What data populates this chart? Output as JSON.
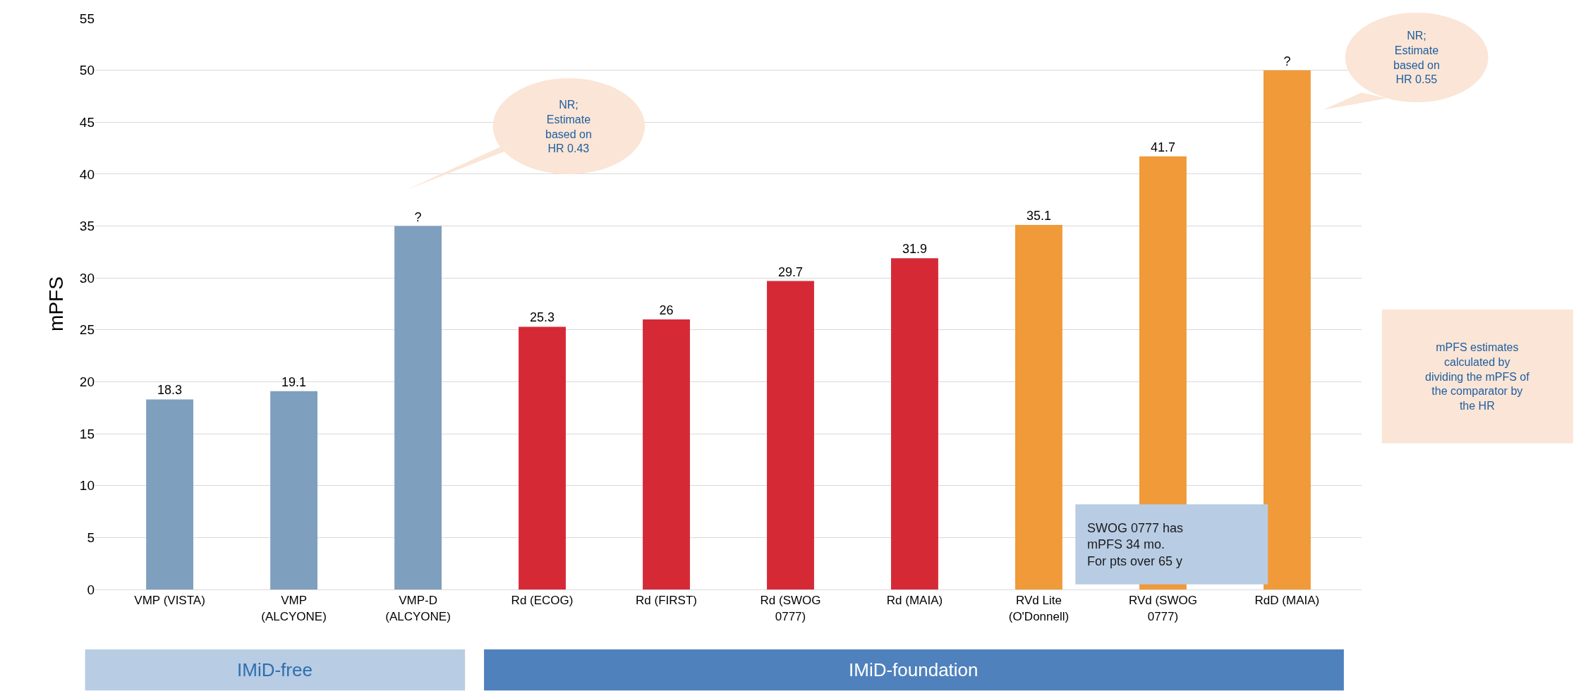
{
  "chart_data": {
    "type": "bar",
    "ylabel": "mPFS",
    "categories": [
      "VMP (VISTA)",
      "VMP\n(ALCYONE)",
      "VMP-D\n(ALCYONE)",
      "Rd (ECOG)",
      "Rd (FIRST)",
      "Rd (SWOG\n0777)",
      "Rd (MAIA)",
      "RVd Lite\n(O'Donnell)",
      "RVd (SWOG\n0777)",
      "RdD (MAIA)"
    ],
    "values": [
      18.3,
      19.1,
      35,
      25.3,
      26,
      29.7,
      31.9,
      35.1,
      41.7,
      50
    ],
    "value_labels": [
      "18.3",
      "19.1",
      "?",
      "25.3",
      "26",
      "29.7",
      "31.9",
      "35.1",
      "41.7",
      "?"
    ],
    "colors": [
      "#7f9fbf",
      "#7f9fbf",
      "#7f9fbf",
      "#d62936",
      "#d62936",
      "#d62936",
      "#d62936",
      "#f09a3a",
      "#f09a3a",
      "#f09a3a"
    ],
    "ylim": [
      0,
      55
    ],
    "yticks": [
      0,
      5,
      10,
      15,
      20,
      25,
      30,
      35,
      40,
      45,
      50,
      55
    ],
    "grid": "y",
    "annotations": [
      "NR;\nEstimate\nbased on\nHR 0.43",
      "NR;\nEstimate\nbased on\nHR 0.55",
      "mPFS estimates\ncalculated by\ndividing the mPFS of\nthe comparator by\nthe HR",
      "SWOG 0777 has\nmPFS 34 mo.\nFor pts over 65 y",
      "IMiD-free",
      "IMiD-foundation"
    ]
  }
}
